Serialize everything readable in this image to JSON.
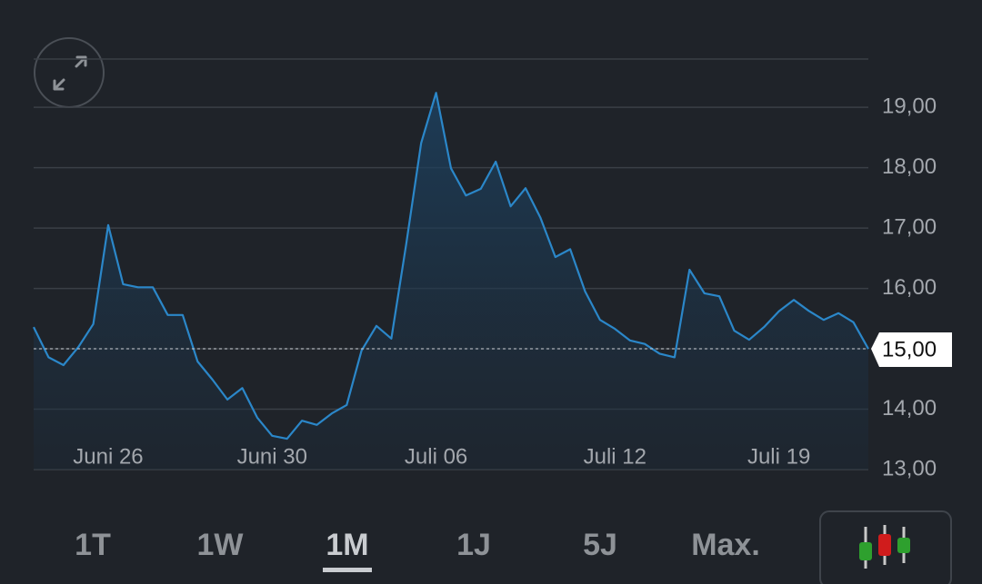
{
  "chart_data": {
    "type": "line",
    "categories": [
      null,
      null,
      null,
      null,
      null,
      "Juni 26",
      null,
      null,
      null,
      null,
      null,
      null,
      null,
      null,
      null,
      null,
      "Juni 30",
      null,
      null,
      null,
      null,
      null,
      null,
      null,
      null,
      null,
      null,
      "Juli 06",
      null,
      null,
      null,
      null,
      null,
      null,
      null,
      null,
      null,
      null,
      null,
      "Juli 12",
      null,
      null,
      null,
      null,
      null,
      null,
      null,
      null,
      null,
      null,
      "Juli 19",
      null,
      null,
      null,
      null,
      null,
      null
    ],
    "series": [
      {
        "color": "#2b87c9",
        "values": [
          15.36,
          14.86,
          14.73,
          15.03,
          15.41,
          17.05,
          16.07,
          16.02,
          16.02,
          15.56,
          15.56,
          14.79,
          14.49,
          14.16,
          14.35,
          13.86,
          13.56,
          13.51,
          13.81,
          13.74,
          13.93,
          14.07,
          14.97,
          15.38,
          15.17,
          16.74,
          18.41,
          19.24,
          17.99,
          17.54,
          17.65,
          18.1,
          17.36,
          17.66,
          17.17,
          16.52,
          16.65,
          15.95,
          15.48,
          15.33,
          15.14,
          15.08,
          14.92,
          14.86,
          16.31,
          15.92,
          15.87,
          15.3,
          15.15,
          15.36,
          15.62,
          15.81,
          15.63,
          15.48,
          15.59,
          15.44,
          15.0
        ]
      }
    ],
    "ylim": [
      13,
      19.8
    ],
    "yticks": [
      {
        "value": 13,
        "label": "13,00"
      },
      {
        "value": 14,
        "label": "14,00"
      },
      {
        "value": 15,
        "label": "15,00"
      },
      {
        "value": 16,
        "label": "16,00"
      },
      {
        "value": 17,
        "label": "17,00"
      },
      {
        "value": 18,
        "label": "18,00"
      },
      {
        "value": 19,
        "label": "19,00"
      }
    ],
    "grid": true,
    "price_marker": {
      "value": 15,
      "label": "15,00"
    }
  },
  "range_buttons": [
    "1T",
    "1W",
    "1M",
    "1J",
    "5J",
    "Max."
  ],
  "selected_range": "1M"
}
